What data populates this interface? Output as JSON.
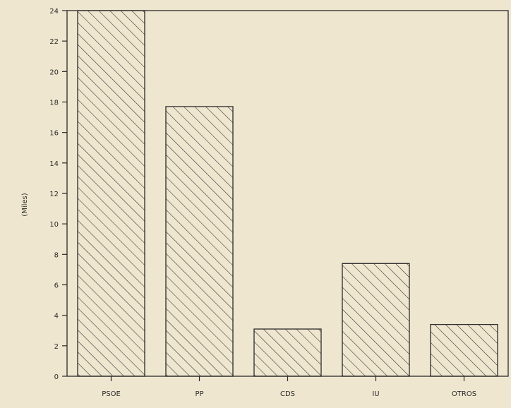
{
  "chart_data": {
    "type": "bar",
    "title": "",
    "xlabel": "",
    "ylabel": "(Miles)",
    "categories": [
      "PSOE",
      "PP",
      "CDS",
      "IU",
      "OTROS"
    ],
    "values": [
      24,
      17.7,
      3.1,
      7.4,
      3.4
    ],
    "ylim": [
      0,
      24
    ],
    "yticks": [
      0,
      2,
      4,
      6,
      8,
      10,
      12,
      14,
      16,
      18,
      20,
      22,
      24
    ],
    "grid": false,
    "bar_fill": "hatched",
    "colors": {
      "background": "#efe6cf",
      "ink": "#2a2a2a"
    }
  }
}
